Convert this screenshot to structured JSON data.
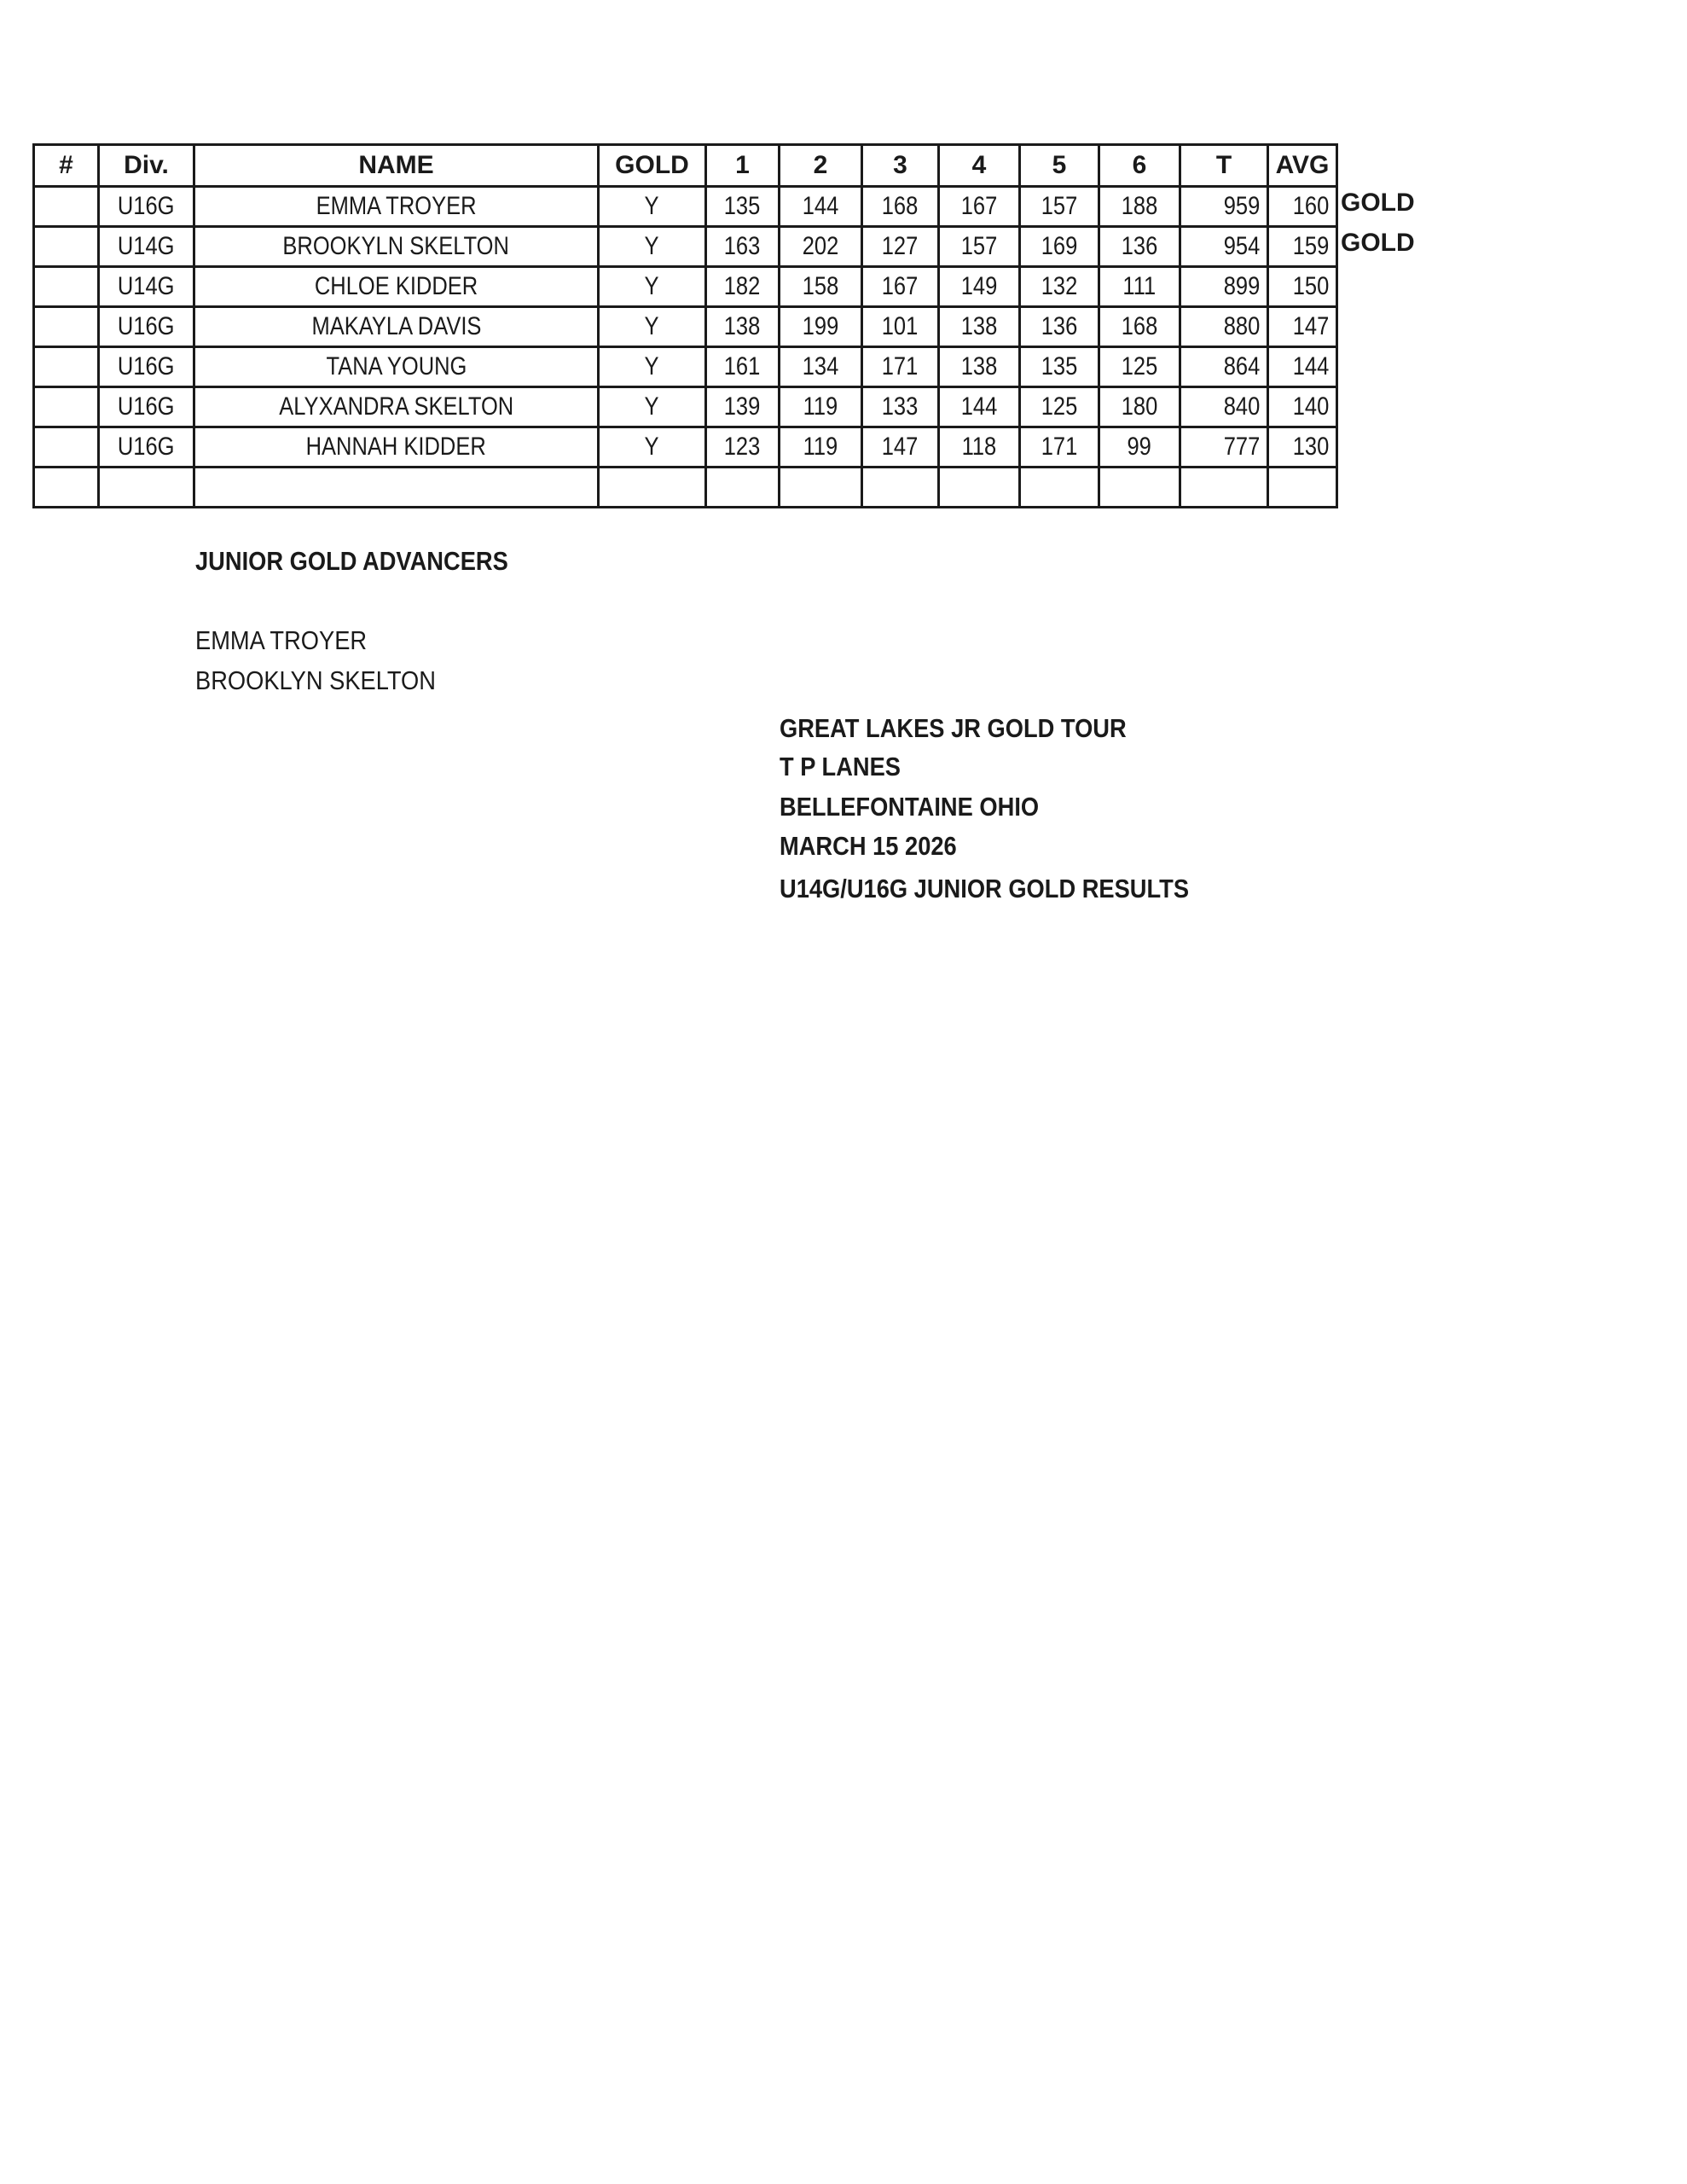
{
  "table": {
    "headers": [
      "#",
      "Div.",
      "NAME",
      "GOLD",
      "1",
      "2",
      "3",
      "4",
      "5",
      "6",
      "T",
      "AVG"
    ],
    "rows": [
      {
        "num": "",
        "div": "U16G",
        "name": "EMMA TROYER",
        "gold": "Y",
        "games": [
          "135",
          "144",
          "168",
          "167",
          "157",
          "188"
        ],
        "total": "959",
        "avg": "160",
        "flag": "GOLD"
      },
      {
        "num": "",
        "div": "U14G",
        "name": "BROOKYLN SKELTON",
        "gold": "Y",
        "games": [
          "163",
          "202",
          "127",
          "157",
          "169",
          "136"
        ],
        "total": "954",
        "avg": "159",
        "flag": "GOLD"
      },
      {
        "num": "",
        "div": "U14G",
        "name": "CHLOE KIDDER",
        "gold": "Y",
        "games": [
          "182",
          "158",
          "167",
          "149",
          "132",
          "111"
        ],
        "total": "899",
        "avg": "150",
        "flag": ""
      },
      {
        "num": "",
        "div": "U16G",
        "name": "MAKAYLA DAVIS",
        "gold": "Y",
        "games": [
          "138",
          "199",
          "101",
          "138",
          "136",
          "168"
        ],
        "total": "880",
        "avg": "147",
        "flag": ""
      },
      {
        "num": "",
        "div": "U16G",
        "name": "TANA YOUNG",
        "gold": "Y",
        "games": [
          "161",
          "134",
          "171",
          "138",
          "135",
          "125"
        ],
        "total": "864",
        "avg": "144",
        "flag": ""
      },
      {
        "num": "",
        "div": "U16G",
        "name": "ALYXANDRA SKELTON",
        "gold": "Y",
        "games": [
          "139",
          "119",
          "133",
          "144",
          "125",
          "180"
        ],
        "total": "840",
        "avg": "140",
        "flag": ""
      },
      {
        "num": "",
        "div": "U16G",
        "name": "HANNAH KIDDER",
        "gold": "Y",
        "games": [
          "123",
          "119",
          "147",
          "118",
          "171",
          "99"
        ],
        "total": "777",
        "avg": "130",
        "flag": ""
      }
    ]
  },
  "advancers": {
    "title": "JUNIOR GOLD ADVANCERS",
    "names": [
      "EMMA TROYER",
      "BROOKLYN SKELTON"
    ]
  },
  "event": {
    "lines": [
      "GREAT LAKES JR GOLD TOUR",
      "T P LANES",
      "BELLEFONTAINE OHIO",
      "MARCH 15 2026",
      "U14G/U16G JUNIOR GOLD RESULTS"
    ]
  }
}
